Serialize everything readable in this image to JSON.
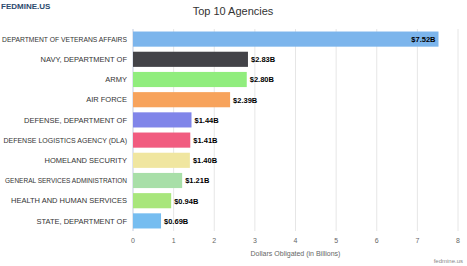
{
  "chart_data": {
    "type": "bar",
    "orientation": "horizontal",
    "title": "Top 10 Agencies",
    "xlabel": "Dollars Obligated (in Billions)",
    "annotations": [
      "FEDMINE.US",
      "fedmine.us"
    ],
    "categories": [
      "DEPARTMENT OF VETERANS AFFAIRS",
      "NAVY, DEPARTMENT OF",
      "ARMY",
      "AIR FORCE",
      "DEFENSE, DEPARTMENT OF",
      "DEFENSE LOGISTICS AGENCY (DLA)",
      "HOMELAND SECURITY",
      "GENERAL SERVICES ADMINISTRATION",
      "HEALTH AND HUMAN SERVICES",
      "STATE, DEPARTMENT OF"
    ],
    "values": [
      7.52,
      2.83,
      2.8,
      2.39,
      1.44,
      1.41,
      1.4,
      1.21,
      0.94,
      0.69
    ],
    "value_labels": [
      "$7.52B",
      "$2.83B",
      "$2.80B",
      "$2.39B",
      "$1.44B",
      "$1.41B",
      "$1.40B",
      "$1.21B",
      "$0.94B",
      "$0.69B"
    ],
    "colors": [
      "#7cb5ec",
      "#434348",
      "#90ed7d",
      "#f7a35c",
      "#8085e9",
      "#f15c80",
      "#f0e6a0",
      "#a8dfa8",
      "#a8e67c",
      "#76bdf0"
    ],
    "data_labels": true,
    "grid": true,
    "xlim": [
      0,
      8
    ],
    "xticks": [
      0,
      1,
      2,
      3,
      4,
      5,
      6,
      7,
      8
    ]
  }
}
